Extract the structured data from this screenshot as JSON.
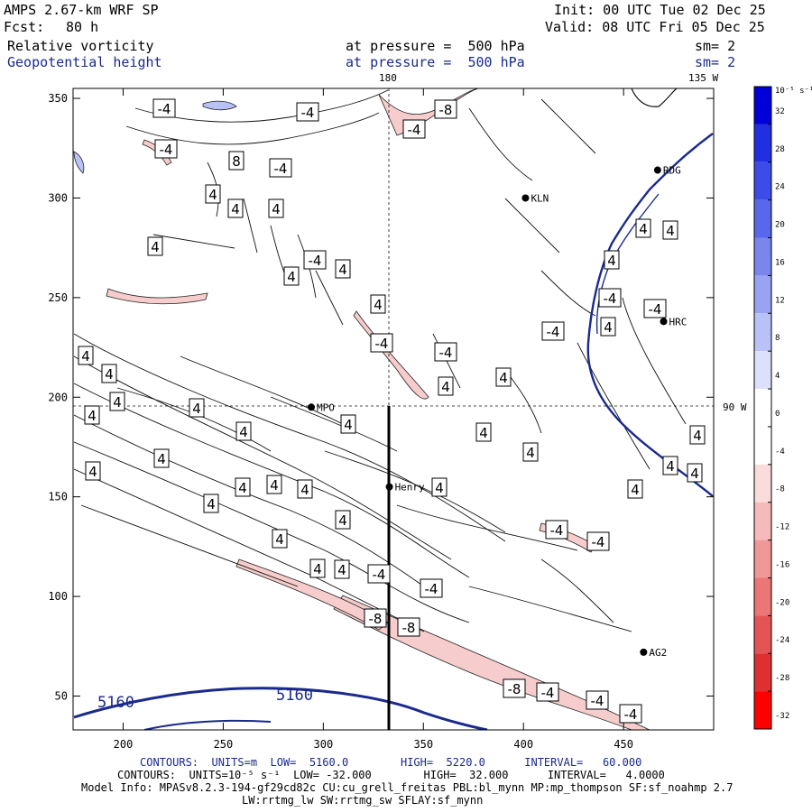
{
  "header": {
    "model": "AMPS 2.67-km WRF SP",
    "fcst_label": "Fcst:",
    "fcst_value": "80 h",
    "init": "Init: 00 UTC Tue 02 Dec 25",
    "valid": "Valid: 08 UTC Fri 05 Dec 25",
    "field1_name": "Relative vorticity",
    "field1_level": "at pressure =  500 hPa",
    "field1_sm": "sm= 2",
    "field2_name": "Geopotential height",
    "field2_level": "at pressure =  500 hPa",
    "field2_sm": "sm= 2"
  },
  "map": {
    "lon_label_top_180": "180",
    "lon_label_top_135w": "135 W",
    "lat_label_90w": "90 W",
    "stations": [
      {
        "name": "RDG",
        "x": 467,
        "y": 314
      },
      {
        "name": "KLN",
        "x": 401,
        "y": 300
      },
      {
        "name": "HRC",
        "x": 470,
        "y": 238
      },
      {
        "name": "MPO",
        "x": 294,
        "y": 195
      },
      {
        "name": "Henry",
        "x": 333,
        "y": 155
      },
      {
        "name": "AG2",
        "x": 460,
        "y": 72
      }
    ],
    "height_contour_labels": [
      "5160",
      "5160"
    ],
    "contour_box_labels": [
      "-4",
      "-4",
      "-4",
      "-8",
      "-4",
      "8",
      "-4",
      "4",
      "4",
      "4",
      "4",
      "-4",
      "4",
      "4",
      "4",
      "-4",
      "-4",
      "4",
      "4",
      "4",
      "4",
      "-4",
      "-4",
      "-4",
      "4",
      "4",
      "4",
      "4",
      "4",
      "4",
      "4",
      "4",
      "4",
      "4",
      "4",
      "4",
      "4",
      "4",
      "4",
      "4",
      "4",
      "4",
      "4",
      "4",
      "4",
      "4",
      "4",
      "4",
      "-4",
      "-4",
      "4",
      "4",
      "-4",
      "-4",
      "-8",
      "-8",
      "-8"
    ]
  },
  "colorbar": {
    "unit_label": "10⁻⁵ s⁻¹",
    "tick_labels": [
      "32",
      "28",
      "24",
      "20",
      "16",
      "12",
      "8",
      "4",
      "0",
      "-4",
      "-8",
      "-12",
      "-16",
      "-20",
      "-24",
      "-28",
      "-32"
    ],
    "colors": [
      "#0000d8",
      "#2030e0",
      "#3c4ce6",
      "#5868ea",
      "#7886ee",
      "#98a4f2",
      "#b8c2f6",
      "#dce0fa",
      "#ffffff",
      "#ffffff",
      "#fbdcdc",
      "#f6baba",
      "#f09898",
      "#ea7676",
      "#e45454",
      "#de3030",
      "#ff0000"
    ]
  },
  "footer": {
    "line1": "CONTOURS:  UNITS=m  LOW=  5160.0        HIGH=  5220.0      INTERVAL=   60.000",
    "line2": "CONTOURS:  UNITS=10⁻⁵ s⁻¹  LOW= -32.000        HIGH=  32.000      INTERVAL=   4.0000",
    "line3": "Model Info: MPASv8.2.3-194-gf29cd82c CU:cu_grell_freitas PBL:bl_mynn MP:mp_thompson SF:sf_noahmp 2.7",
    "line4": "LW:rrtmg_lw SW:rrtmg_sw SFLAY:sf_mynn"
  },
  "chart_data": {
    "type": "heatmap",
    "title": "Relative vorticity / Geopotential height at pressure = 500 hPa",
    "x_ticks": [
      200,
      250,
      300,
      350,
      400,
      450
    ],
    "y_ticks": [
      50,
      100,
      150,
      200,
      250,
      300,
      350
    ],
    "xlim": [
      175,
      495
    ],
    "ylim": [
      33,
      355
    ],
    "grid": false,
    "contours_height": {
      "units": "m",
      "low": 5160.0,
      "high": 5220.0,
      "interval": 60.0
    },
    "contours_vorticity": {
      "units": "10⁻⁵ s⁻¹",
      "low": -32.0,
      "high": 32.0,
      "interval": 4.0
    },
    "colorbar_range": [
      -32,
      32
    ]
  }
}
